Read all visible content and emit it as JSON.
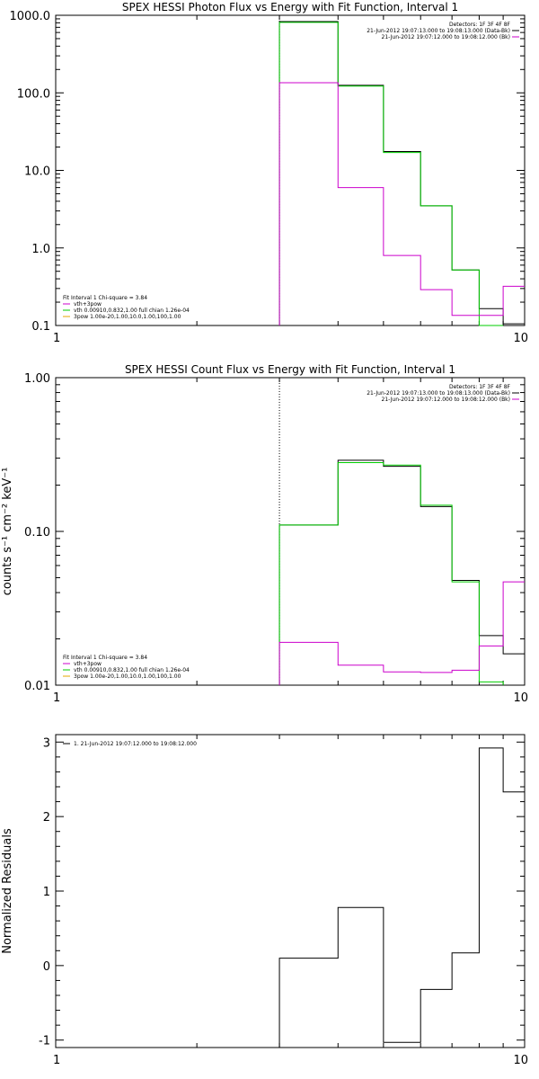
{
  "chart_data": [
    {
      "type": "line",
      "title": "SPEX HESSI Photon Flux vs Energy with Fit Function, Interval 1",
      "xlabel": "",
      "ylabel": "",
      "xscale": "log",
      "yscale": "log",
      "xlim": [
        1,
        10
      ],
      "ylim": [
        0.1,
        1000
      ],
      "x_ticks": [
        1,
        10
      ],
      "x_tick_labels": [
        "1",
        "10"
      ],
      "y_ticks": [
        0.1,
        1,
        10,
        100,
        1000
      ],
      "y_tick_labels": [
        "0.1",
        "1.0",
        "10.0",
        "100.0",
        "1000.0"
      ],
      "legend_position": "top-right",
      "legend_lines": [
        {
          "text": "Detectors: 1F 3F 4F 8F",
          "color": "#000000",
          "marker": false
        },
        {
          "text": "21-Jun-2012 19:07:13.000 to 19:08:13.000 (Data-Bk)",
          "color": "#000000",
          "marker": true
        },
        {
          "text": "21-Jun-2012 19:07:12.000 to 19:08:12.000 (Bk)",
          "color": "#cc00cc",
          "marker": true
        }
      ],
      "fit_legend_position": "bottom-left",
      "fit_legend_lines": [
        {
          "text": "Fit Interval 1    Chi-square = 3.84",
          "color": "#000000",
          "marker": false
        },
        {
          "text": "vth+3pow",
          "color": "#cc00cc",
          "marker": true
        },
        {
          "text": "vth 0.00910,0.832,1.00   full chian 1.26e-04",
          "color": "#00cc00",
          "marker": true
        },
        {
          "text": "3pow 1.00e-20,1.00,10.0,1.00,100,1.00",
          "color": "#e6a800",
          "marker": true
        }
      ],
      "vline_x": 3.0,
      "series": [
        {
          "color": "#000000",
          "edges": [
            3,
            4,
            5,
            6,
            7,
            8,
            9,
            10
          ],
          "values": [
            830,
            125,
            17.5,
            3.5,
            0.52,
            0.165,
            0.105
          ]
        },
        {
          "color": "#00cc00",
          "edges": [
            3,
            4,
            5,
            6,
            7,
            8,
            9
          ],
          "values": [
            810,
            122,
            17,
            3.5,
            0.52,
            0.09
          ]
        },
        {
          "color": "#cc00cc",
          "edges": [
            3,
            4,
            5,
            6,
            7,
            8,
            9,
            10
          ],
          "values": [
            135,
            6,
            0.8,
            0.29,
            0.135,
            0.135,
            0.32
          ]
        }
      ]
    },
    {
      "type": "line",
      "title": "SPEX HESSI Count Flux vs Energy with Fit Function, Interval 1",
      "xlabel": "",
      "ylabel": "counts s⁻¹ cm⁻² keV⁻¹",
      "xscale": "log",
      "yscale": "log",
      "xlim": [
        1,
        10
      ],
      "ylim": [
        0.01,
        1.0
      ],
      "x_ticks": [
        1,
        10
      ],
      "x_tick_labels": [
        "1",
        "10"
      ],
      "y_ticks": [
        0.01,
        0.1,
        1.0
      ],
      "y_tick_labels": [
        "0.01",
        "0.10",
        "1.00"
      ],
      "legend_position": "top-right",
      "legend_lines": [
        {
          "text": "Detectors: 1F 3F 4F 8F",
          "color": "#000000",
          "marker": false
        },
        {
          "text": "21-Jun-2012 19:07:13.000 to 19:08:13.000 (Data-Bk)",
          "color": "#000000",
          "marker": true
        },
        {
          "text": "21-Jun-2012 19:07:12.000 to 19:08:12.000 (Bk)",
          "color": "#cc00cc",
          "marker": true
        }
      ],
      "fit_legend_position": "bottom-left",
      "fit_legend_lines": [
        {
          "text": "Fit Interval 1    Chi-square = 3.84",
          "color": "#000000",
          "marker": false
        },
        {
          "text": "vth+3pow",
          "color": "#cc00cc",
          "marker": true
        },
        {
          "text": "vth 0.00910,0.832,1.00   full chian 1.26e-04",
          "color": "#00cc00",
          "marker": true
        },
        {
          "text": "3pow 1.00e-20,1.00,10.0,1.00,100,1.00",
          "color": "#e6a800",
          "marker": true
        }
      ],
      "vline_x": 3.0,
      "series": [
        {
          "color": "#000000",
          "edges": [
            3,
            4,
            5,
            6,
            7,
            8,
            9,
            10
          ],
          "values": [
            0.11,
            0.29,
            0.265,
            0.145,
            0.048,
            0.021,
            0.016
          ]
        },
        {
          "color": "#00cc00",
          "edges": [
            3,
            4,
            5,
            6,
            7,
            8,
            9
          ],
          "values": [
            0.11,
            0.28,
            0.27,
            0.148,
            0.047,
            0.0105
          ]
        },
        {
          "color": "#cc00cc",
          "edges": [
            3,
            4,
            5,
            6,
            7,
            8,
            9,
            10
          ],
          "values": [
            0.019,
            0.0135,
            0.0122,
            0.0121,
            0.0125,
            0.018,
            0.047
          ]
        }
      ]
    },
    {
      "type": "line",
      "title": "",
      "xlabel": "",
      "ylabel": "Normalized Residuals",
      "xscale": "log",
      "yscale": "linear",
      "xlim": [
        1,
        10
      ],
      "ylim": [
        -1.1,
        3.1
      ],
      "x_ticks": [
        1,
        10
      ],
      "x_tick_labels": [
        "1",
        "10"
      ],
      "y_ticks": [
        -1,
        0,
        1,
        2,
        3
      ],
      "y_tick_labels": [
        "-1",
        "0",
        "1",
        "2",
        "3"
      ],
      "legend_position": "top-left",
      "legend_lines": [
        {
          "text": "1. 21-Jun-2012 19:07:12.000 to 19:08:12.000",
          "color": "#000000",
          "marker": true
        }
      ],
      "series": [
        {
          "color": "#000000",
          "edges": [
            3,
            4,
            5,
            6,
            7,
            8,
            9,
            10
          ],
          "values": [
            0.1,
            0.78,
            -1.03,
            -0.32,
            0.17,
            2.92,
            2.33
          ]
        }
      ]
    }
  ]
}
